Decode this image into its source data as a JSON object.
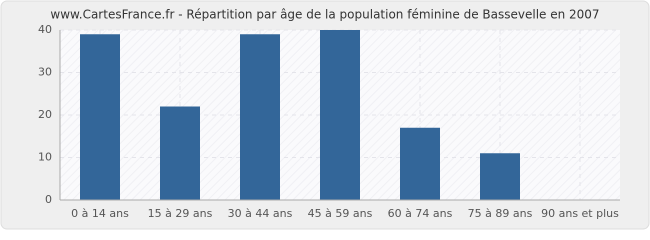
{
  "chart_data": {
    "type": "bar",
    "title": "www.CartesFrance.fr - Répartition par âge de la population féminine de Bassevelle en 2007",
    "categories": [
      "0 à 14 ans",
      "15 à 29 ans",
      "30 à 44 ans",
      "45 à 59 ans",
      "60 à 74 ans",
      "75 à 89 ans",
      "90 ans et plus"
    ],
    "values": [
      39,
      22,
      39,
      40,
      17,
      11,
      0
    ],
    "color": "#336699",
    "ylim": [
      0,
      40
    ],
    "yticks": [
      0,
      10,
      20,
      30,
      40
    ],
    "grid": true
  }
}
